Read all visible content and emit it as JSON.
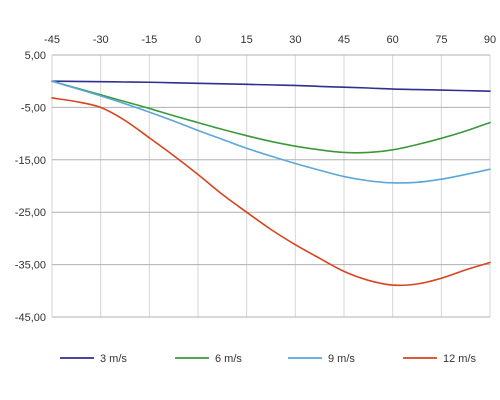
{
  "chart_data": {
    "type": "line",
    "x_ticks": [
      -45,
      -30,
      -15,
      0,
      15,
      30,
      45,
      60,
      75,
      90
    ],
    "x_tick_labels": [
      "-45",
      "-30",
      "-15",
      "0",
      "15",
      "30",
      "45",
      "60",
      "75",
      "90"
    ],
    "y_ticks": [
      5,
      -5,
      -15,
      -25,
      -35,
      -45
    ],
    "y_tick_labels": [
      "5,00",
      "-5,00",
      "-15,00",
      "-25,00",
      "-35,00",
      "-45,00"
    ],
    "xlim": [
      -45,
      90
    ],
    "ylim": [
      -45,
      5
    ],
    "grid": true,
    "legend_position": "bottom",
    "x": [
      -45,
      -37.5,
      -30,
      -22.5,
      -15,
      -7.5,
      0,
      7.5,
      15,
      22.5,
      30,
      37.5,
      45,
      52.5,
      60,
      67.5,
      75,
      82.5,
      90
    ],
    "series": [
      {
        "name": "3 m/s",
        "color": "#2e2f91",
        "values": [
          0.0,
          -0.05,
          -0.1,
          -0.15,
          -0.2,
          -0.3,
          -0.4,
          -0.5,
          -0.6,
          -0.7,
          -0.8,
          -1.0,
          -1.15,
          -1.3,
          -1.5,
          -1.6,
          -1.7,
          -1.8,
          -1.9
        ]
      },
      {
        "name": "6 m/s",
        "color": "#3a9a3a",
        "values": [
          0.0,
          -1.3,
          -2.6,
          -3.9,
          -5.2,
          -6.6,
          -7.9,
          -9.2,
          -10.4,
          -11.5,
          -12.4,
          -13.1,
          -13.6,
          -13.6,
          -13.1,
          -12.1,
          -10.9,
          -9.5,
          -7.9
        ]
      },
      {
        "name": "9 m/s",
        "color": "#5ba7d9",
        "values": [
          0.0,
          -1.4,
          -2.8,
          -4.3,
          -5.9,
          -7.6,
          -9.4,
          -11.1,
          -12.8,
          -14.3,
          -15.7,
          -17.0,
          -18.2,
          -19.0,
          -19.4,
          -19.3,
          -18.7,
          -17.8,
          -16.8
        ]
      },
      {
        "name": "12 m/s",
        "color": "#d9431e",
        "values": [
          -3.2,
          -3.9,
          -5.0,
          -7.5,
          -10.8,
          -14.2,
          -17.8,
          -21.6,
          -25.0,
          -28.3,
          -31.2,
          -33.8,
          -36.3,
          -38.0,
          -38.9,
          -38.7,
          -37.6,
          -36.0,
          -34.6
        ]
      }
    ]
  }
}
